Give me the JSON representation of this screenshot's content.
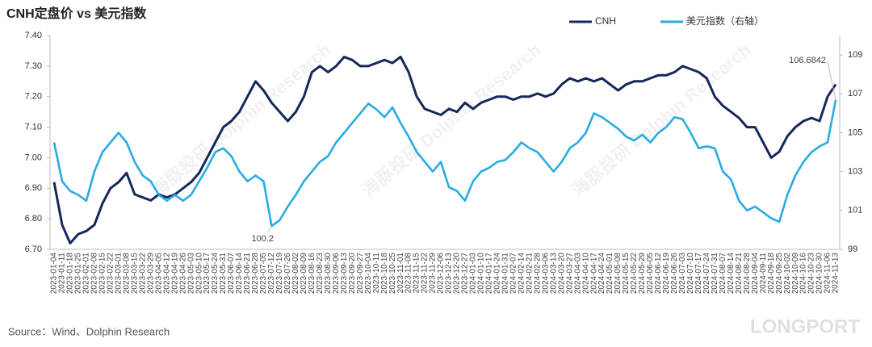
{
  "chart_data": {
    "type": "line",
    "title": "CNH定盘价 vs 美元指数",
    "source": "Source：Wind、Dolphin Research",
    "watermarks": [
      "海豚投研 Dolphin Research",
      "LONGPORT"
    ],
    "categories": [
      "2023-01-04",
      "2023-01-11",
      "2023-01-18",
      "2023-01-25",
      "2023-02-01",
      "2023-02-08",
      "2023-02-15",
      "2023-02-22",
      "2023-03-01",
      "2023-03-08",
      "2023-03-15",
      "2023-03-22",
      "2023-03-29",
      "2023-04-05",
      "2023-04-12",
      "2023-04-19",
      "2023-04-26",
      "2023-05-03",
      "2023-05-10",
      "2023-05-17",
      "2023-05-24",
      "2023-05-31",
      "2023-06-07",
      "2023-06-14",
      "2023-06-21",
      "2023-06-28",
      "2023-07-05",
      "2023-07-12",
      "2023-07-19",
      "2023-07-26",
      "2023-08-02",
      "2023-08-09",
      "2023-08-16",
      "2023-08-23",
      "2023-08-30",
      "2023-09-06",
      "2023-09-13",
      "2023-09-20",
      "2023-09-27",
      "2023-10-04",
      "2023-10-11",
      "2023-10-18",
      "2023-10-25",
      "2023-11-01",
      "2023-11-08",
      "2023-11-15",
      "2023-11-22",
      "2023-11-29",
      "2023-12-06",
      "2023-12-13",
      "2023-12-20",
      "2023-12-27",
      "2024-01-03",
      "2024-01-10",
      "2024-01-17",
      "2024-01-24",
      "2024-01-31",
      "2024-02-07",
      "2024-02-14",
      "2024-02-21",
      "2024-02-28",
      "2024-03-06",
      "2024-03-13",
      "2024-03-20",
      "2024-03-27",
      "2024-04-03",
      "2024-04-10",
      "2024-04-17",
      "2024-04-24",
      "2024-05-01",
      "2024-05-08",
      "2024-05-15",
      "2024-05-22",
      "2024-05-29",
      "2024-06-05",
      "2024-06-12",
      "2024-06-19",
      "2024-06-26",
      "2024-07-03",
      "2024-07-10",
      "2024-07-17",
      "2024-07-24",
      "2024-07-31",
      "2024-08-07",
      "2024-08-14",
      "2024-08-21",
      "2024-08-28",
      "2024-09-04",
      "2024-09-11",
      "2024-09-18",
      "2024-09-25",
      "2024-10-02",
      "2024-10-09",
      "2024-10-16",
      "2024-10-23",
      "2024-10-30",
      "2024-11-06",
      "2024-11-13"
    ],
    "series": [
      {
        "name": "CNH",
        "color": "#14285a",
        "values": [
          6.92,
          6.78,
          6.72,
          6.75,
          6.76,
          6.78,
          6.85,
          6.9,
          6.92,
          6.95,
          6.88,
          6.87,
          6.86,
          6.88,
          6.87,
          6.88,
          6.9,
          6.92,
          6.95,
          7.0,
          7.05,
          7.1,
          7.12,
          7.15,
          7.2,
          7.25,
          7.22,
          7.18,
          7.15,
          7.12,
          7.15,
          7.2,
          7.28,
          7.3,
          7.28,
          7.3,
          7.33,
          7.32,
          7.3,
          7.3,
          7.31,
          7.32,
          7.31,
          7.33,
          7.28,
          7.2,
          7.16,
          7.15,
          7.14,
          7.16,
          7.15,
          7.18,
          7.16,
          7.18,
          7.19,
          7.2,
          7.2,
          7.19,
          7.2,
          7.2,
          7.21,
          7.2,
          7.21,
          7.24,
          7.26,
          7.25,
          7.26,
          7.25,
          7.26,
          7.24,
          7.22,
          7.24,
          7.25,
          7.25,
          7.26,
          7.27,
          7.27,
          7.28,
          7.3,
          7.29,
          7.28,
          7.26,
          7.2,
          7.17,
          7.15,
          7.13,
          7.1,
          7.1,
          7.05,
          7.0,
          7.02,
          7.07,
          7.1,
          7.12,
          7.13,
          7.12,
          7.2,
          7.24
        ]
      },
      {
        "name": "美元指数（右轴）",
        "color": "#29abe2",
        "axis": "y2",
        "values": [
          104.5,
          102.5,
          102.0,
          101.8,
          101.5,
          103.0,
          104.0,
          104.5,
          105.0,
          104.5,
          103.5,
          102.8,
          102.5,
          101.8,
          101.5,
          101.8,
          101.5,
          101.8,
          102.5,
          103.2,
          104.0,
          104.2,
          103.8,
          103.0,
          102.5,
          102.8,
          102.5,
          100.2,
          100.5,
          101.2,
          101.8,
          102.5,
          103.0,
          103.5,
          103.8,
          104.5,
          105.0,
          105.5,
          106.0,
          106.5,
          106.2,
          105.8,
          106.3,
          105.5,
          104.8,
          104.0,
          103.5,
          103.0,
          103.5,
          102.2,
          102.0,
          101.5,
          102.5,
          103.0,
          103.2,
          103.5,
          103.6,
          104.0,
          104.5,
          104.2,
          104.0,
          103.5,
          103.0,
          103.5,
          104.2,
          104.5,
          105.0,
          106.0,
          105.8,
          105.5,
          105.2,
          104.8,
          104.6,
          104.9,
          104.5,
          105.0,
          105.3,
          105.8,
          105.7,
          105.0,
          104.2,
          104.3,
          104.2,
          103.0,
          102.6,
          101.5,
          101.0,
          101.2,
          100.9,
          100.6,
          100.4199,
          101.8,
          102.8,
          103.5,
          104.0,
          104.3,
          104.5,
          106.6842
        ]
      }
    ],
    "ylim": [
      6.7,
      7.4
    ],
    "yticks": [
      {
        "value": 6.7,
        "label": "6.70"
      },
      {
        "value": 6.8,
        "label": "6.80"
      },
      {
        "value": 6.9,
        "label": "6.90"
      },
      {
        "value": 7.0,
        "label": "7.00"
      },
      {
        "value": 7.1,
        "label": "7.10"
      },
      {
        "value": 7.2,
        "label": "7.20"
      },
      {
        "value": 7.3,
        "label": "7.30"
      },
      {
        "value": 7.4,
        "label": "7.40"
      }
    ],
    "y2lim": [
      99,
      110
    ],
    "y2ticks": [
      99,
      101,
      103,
      105,
      107,
      109
    ],
    "legend": "top",
    "grid": false
  }
}
